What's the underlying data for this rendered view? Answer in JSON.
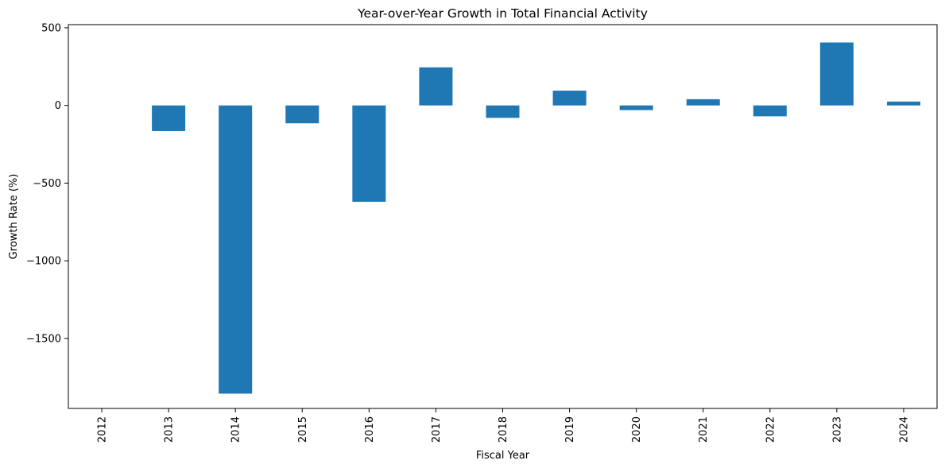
{
  "chart_data": {
    "type": "bar",
    "title": "Year-over-Year Growth in Total Financial Activity",
    "xlabel": "Fiscal Year",
    "ylabel": "Growth Rate (%)",
    "categories": [
      "2012",
      "2013",
      "2014",
      "2015",
      "2016",
      "2017",
      "2018",
      "2019",
      "2020",
      "2021",
      "2022",
      "2023",
      "2024"
    ],
    "values": [
      null,
      -165,
      -1855,
      -115,
      -620,
      245,
      -80,
      95,
      -30,
      40,
      -70,
      405,
      25
    ],
    "ylim": [
      -1950,
      520
    ],
    "yticks": [
      500,
      0,
      -500,
      -1000,
      -1500
    ],
    "ytick_labels": [
      "500",
      "0",
      "−500",
      "−1000",
      "−1500"
    ],
    "bar_color": "#1f77b4",
    "grid": false,
    "legend": "none"
  }
}
